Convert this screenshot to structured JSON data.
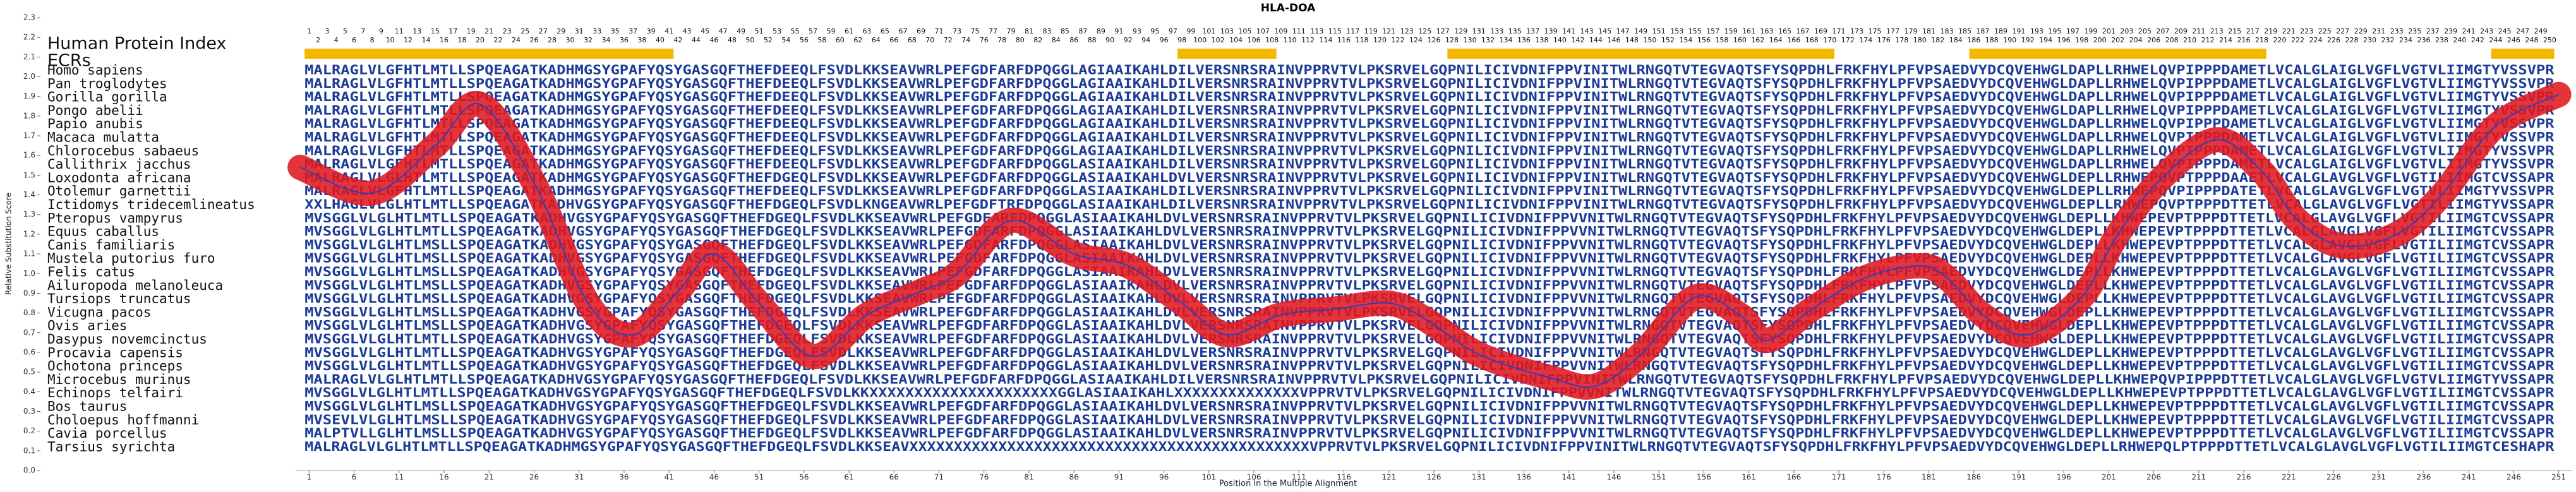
{
  "chart_data": {
    "type": "line",
    "title": "HLA-DOA",
    "xlabel": "Position in the Multiple Alignment",
    "ylabel": "Relative Substitution Score",
    "index_label": "Human Protein Index",
    "ecr_label": "ECRs",
    "x": [
      0,
      8,
      15,
      20,
      26,
      32,
      37,
      42,
      46,
      51,
      57,
      63,
      69,
      73,
      79,
      86,
      92,
      98,
      103,
      109,
      115,
      121,
      125,
      131,
      139,
      144,
      149,
      155,
      160,
      163,
      168,
      174,
      180,
      183,
      187,
      192,
      198,
      202,
      207,
      213,
      218,
      222,
      227,
      233,
      238,
      244,
      251
    ],
    "values": [
      1.54,
      1.41,
      1.65,
      1.86,
      1.46,
      0.85,
      0.69,
      0.91,
      1.1,
      0.85,
      0.58,
      0.79,
      0.91,
      1.0,
      1.27,
      1.1,
      1.04,
      0.85,
      0.69,
      0.79,
      0.82,
      0.85,
      0.77,
      0.59,
      0.47,
      0.43,
      0.59,
      0.88,
      0.79,
      0.66,
      0.82,
      0.98,
      1.04,
      0.98,
      0.79,
      0.69,
      0.88,
      1.2,
      1.49,
      1.68,
      1.52,
      1.27,
      1.14,
      1.2,
      1.4,
      1.75,
      1.91
    ],
    "color": "#e01820",
    "center_color": "#2b3fc0",
    "sequence_color": "#1c3b96",
    "ecr_color": "#f5b800",
    "xlim": [
      -0.5,
      252.5
    ],
    "ylim": [
      0,
      2.3
    ],
    "xticks": [
      1,
      6,
      11,
      16,
      21,
      26,
      31,
      36,
      41,
      46,
      51,
      56,
      61,
      66,
      71,
      76,
      81,
      86,
      91,
      96,
      101,
      106,
      111,
      116,
      121,
      126,
      131,
      136,
      141,
      146,
      151,
      156,
      161,
      166,
      171,
      176,
      181,
      186,
      191,
      196,
      201,
      206,
      211,
      216,
      221,
      226,
      231,
      236,
      241,
      246,
      251
    ],
    "yticks": [
      {
        "value": 0,
        "label": "0.0"
      },
      0.1,
      0.2,
      0.3,
      0.4,
      0.5,
      0.6,
      0.7,
      0.8,
      0.9,
      {
        "value": 1,
        "label": "1.0"
      },
      1.1,
      1.2,
      1.3,
      1.4,
      1.5,
      1.6,
      1.7,
      1.8,
      1.9,
      {
        "value": 2,
        "label": "2.0"
      },
      2.1,
      2.2,
      2.3
    ],
    "position_labels": [
      1,
      2,
      3,
      4,
      5,
      6,
      7,
      8,
      9,
      10,
      11,
      12,
      13,
      14,
      15,
      16,
      17,
      18,
      19,
      20,
      21,
      22,
      23,
      24,
      25,
      26,
      27,
      28,
      29,
      30,
      31,
      32,
      33,
      34,
      35,
      36,
      37,
      38,
      39,
      40,
      41,
      42,
      43,
      44,
      45,
      46,
      47,
      48,
      49,
      50,
      51,
      52,
      53,
      54,
      55,
      56,
      57,
      58,
      59,
      60,
      61,
      62,
      63,
      64,
      65,
      66,
      67,
      68,
      69,
      70,
      71,
      72,
      73,
      74,
      75,
      76,
      77,
      78,
      79,
      80,
      81,
      82,
      83,
      84,
      85,
      86,
      87,
      88,
      89,
      90,
      91,
      92,
      93,
      94,
      95,
      96,
      97,
      98,
      99,
      100,
      101,
      102,
      103,
      104,
      105,
      106,
      107,
      108,
      109,
      110,
      111,
      112,
      113,
      114,
      115,
      116,
      117,
      118,
      119,
      120,
      121,
      122,
      123,
      124,
      125,
      126,
      127,
      128,
      129,
      130,
      131,
      132,
      133,
      134,
      135,
      136,
      137,
      138,
      139,
      140,
      141,
      142,
      143,
      144,
      145,
      146,
      147,
      148,
      149,
      150,
      151,
      152,
      153,
      154,
      155,
      156,
      157,
      158,
      159,
      160,
      161,
      162,
      163,
      164,
      165,
      166,
      167,
      168,
      169,
      170,
      171,
      172,
      173,
      174,
      175,
      176,
      177,
      178,
      179,
      180,
      181,
      182,
      183,
      184,
      185,
      186,
      187,
      188,
      189,
      190,
      191,
      192,
      193,
      194,
      195,
      196,
      197,
      198,
      199,
      200,
      201,
      202,
      203,
      204,
      205,
      206,
      207,
      208,
      209,
      210,
      211,
      212,
      213,
      214,
      215,
      216,
      217,
      218,
      219,
      220,
      221,
      222,
      223,
      224,
      225,
      226,
      227,
      228,
      229,
      230,
      231,
      232,
      233,
      234,
      235,
      236,
      237,
      238,
      239,
      240,
      241,
      242,
      243,
      244,
      245,
      246,
      247,
      248,
      249,
      250
    ],
    "ecrs": [
      [
        1,
        41
      ],
      [
        98,
        108
      ],
      [
        128,
        170
      ],
      [
        186,
        218
      ],
      [
        244,
        250
      ]
    ],
    "species": [
      "Homo sapiens",
      "Pan troglodytes",
      "Gorilla gorilla",
      "Pongo abelii",
      "Papio anubis",
      "Macaca mulatta",
      "Chlorocebus sabaeus",
      "Callithrix jacchus",
      "Loxodonta africana",
      "Otolemur garnettii",
      "Ictidomys tridecemlineatus",
      "Pteropus vampyrus",
      "Equus caballus",
      "Canis familiaris",
      "Mustela putorius furo",
      "Felis catus",
      "Ailuropoda melanoleuca",
      "Tursiops truncatus",
      "Vicugna pacos",
      "Ovis aries",
      "Dasypus novemcinctus",
      "Procavia capensis",
      "Ochotona princeps",
      "Microcebus murinus",
      "Echinops telfairi",
      "Bos taurus",
      "Choloepus hoffmanni",
      "Cavia porcellus",
      "Tarsius syrichta"
    ],
    "sequences": [
      "MALRAGLVLGFHTLMTLLSPQEAGATKADHMGSYGPAFYQSYGASGQFTHEFDEEQLFSVDLKKSEAVWRLPEFGDFARFDPQGGLAGIAAIKAHLDILVERSNRSRAINVPPRVTVLPKSRVELGQPNILICIVDNIFPPVINITWLRNGQTVTEGVAQTSFYSQPDHLFRKFHYLPFVPSAEDVYDCQVEHWGLDAPLLRHWELQVPIPPPDAMETLVCALGLAIGLVGFLVGTVLIIMGTYVSSVPR",
      "MALRAGLVLGFHTLMTLLSPQEAGATKADHMGSYGPAFYQSYGASGQFTHEFDEEQLFSVDLKKSEAVWRLPEFGDFARFDPQGGLAGIAAIKAHLDILVERSNRSRAINVPPRVTVLPKSRVELGQPNILICIVDNIFPPVINITWLRNGQTVTEGVAQTSFYSQPDHLFRKFHYLPFVPSAEDVYDCQVEHWGLDAPLLRHWELQVPIPPPDAMETLVCALGLAIGLVGFLVGTVLIIMGTYVSSVPR",
      "MALRAGLVLGFHTLMTLLSPQEAGATKADHMGSYGPAFYQSYGASGQFTHEFDEEQLFSVDLKKSEAVWRLPEFGDFARFDPQGGLAGIAAIKAHLDILVERSNRSRAINVPPRVTVLPKSRVELGQPNILICIVDNIFPPVINITWLRNGQTVTEGVAQTSFYSQPDHLFRKFHYLPFVPSAEDVYDCQVEHWGLDAPLLRHWELQVPIPPPDAMETLVCALGLAIGLVGFLVGTVLIIMGTYVSSVPR",
      "MALRAGLVLGFHTLMTLLSPQEAGATKADHMGSYGPAFYQSYGASGQFTHEFDEEQLFSVDLKKSEAVWRLPEFGDFARFDPQGGLAGIAAIKAHLDILVERSNRSRAINVPPRVTVLPKSRVELGQPNILICIVDNIFPPVINITWLRNGQTVTEGVAQTSFYSQPDHLFRKFHYLPFVPSAEDVYDCQVEHWGLDAPLLRHWELQVPIPPPDAMETLVCALGLAIGLVGFLVGTVLIIMGTYVSSVPR",
      "MALRAGLVLGFHTLMTLLSPQEAGATKADHMGSYGPAFYQSYGASGQFTHEFDEEQLFSVDLKKSEAVWRLPEFGDFARFDPQGGLAGIAAIKAHLDILVERSNRSRAINVPPRVTVLPKSRVELGQPNILICIVDNIFPPVINITWLRNGQTVTEGVAQTSFYSQPDHLFRKFHYLPFVPSAEDVYDCQVEHWGLDAPLLRHWELQVPIPPPDAMETLVCALGLAIGLVGFLVGTVLIIMGTYVSSVPR",
      "MALRAGLVLGFHTLMTLLSPQEAGATKADHMGSYGPAFYQSYGASGQFTHEFDEEQLFSVDLKKSEAVWRLPEFGDFARFDPQGGLAGIAAIKAHLDILVERSNRSRAINVPPRVTVLPKSRVELGQPNILICIVDNIFPPVINITWLRNGQTVTEGVAQTSFYSQPDHLFRKFHYLPFVPSAEDVYDCQVEHWGLDAPLLRHWELQVPIPPPDAMETLVCALGLAIGLVGFLVGTVLIIMGTYVSSVPR",
      "MALRAGLVLGFHTLMTLLSPQEAGATKADHMGSYGPAFYQSYGASGQFTHEFDEEQLFSVDLKKSEAVWRLPEFGDFARFDPQGGLAGIAAIKAHLDILVERSNRSRAINVPPRVTVLPKSRVELGQPNILICIVDNIFPPVINITWLRNGQTVTEGVAQTSFYSQPDHLFRKFHYLPFVPSAEDVYDCQVEHWGLDAPLLRHWELQVPIPPPDAMETLVCALGLAIGLVGFLVGTVLIIMGTYVSSVPR",
      "MALRAGLVLGFHTLMTLLSPQEAGATKADHMGSYGPAFYQSYGASGQFTHEFDEEQLFSVDLKKSEAVWRLPEFGDFARFDPQGGLASIAAIKAHLDILVERSNRSRAINVPPRVTVLPKSRVELGQPNILICIVDNIFPPVINITWLRNGQTVTEGVAQTSFYSQPDHLFRKFHYLPFVPSAEDVYDCQVEHWGLDAPLLRHWELQVPIPPPDAMETLVCALGLAIGLVGFLVGTVLIIMGTYVSSVPR",
      "MALRAGLVLGLHTLMTLLSPQEAGATKADHMGSYGPAFYQSYGASGQFTHEFDGEQLFSVDLKKSEAVWRLPEFGDFARFDPQGGLASIAAIKAHLDVLVERSNRSRAINVPPRVTVLPKSRVELGQPNILICIVDNIFPPVINITWLRNGQTVTEGVAQTSFYSQPDHLFRKFHYLPFVPSAEDVYDCQVEHWGLDEPLLRHWEPQVPTPPPDAAETLVCALGLAVGLVGFLVGTILIIMGTCVSSAPR",
      "MALRAGLVLGFHTLMTLLSPQEAGATKADHMGSYGPAFYQSYGASGQFTHEFDEEQLFSVDLKKSEAVWRLPEFGDFARFDPQGGLASIAAIKAHLDILVERSNRSRAINVPPRVTVLPKSRVELGQPNILICIVDNIFPPVINITWLRNGQTVTEGVAQTSFYSQPDHLFRKFHYLPFVPSAEDVYDCQVEHWGLDEPLLRHWEPQVPIPPPDATETLVCALGLAVGLVGFLVGTVLIIMGTYVSSVPR",
      "XXLHAGLVLGLHTLMTLLSPQEAGATKADHVGSYGPAFYQSYGASGQFTHEFDGEQLFSVDLKNGEAVWRLPEFGDFTRFDPQGGLASIAAIKAHLDILVERSNRSRAINVPPRVTVLPKSRVELGQPNILICIVDNIFPPVINITWLRNGQTVTEGVAQTSFYSQPDHLFRKFHYLPFVPSAEDVYDCQVEHWGLDEPLLRHWEPQVPTPPPDTTETLVCALGLAVGLVGFLVGTILIIMGTYVSSAPR",
      "MVSGGLVLGLHTLMTLLSPQEAGATKADHVGSYGPAFYQSYGASGQFTHEFDGEQLFSVDLKKSEAVWRLPEFGDFARFDPQGGLASIAAIKAHLDVLVERSNRSRAINVPPRVTVLPKSRVELGQPNILICIVDNIFPPVVNITWLRNGQTVTEGVAQTSFYSQPDHLFRKFHYLPFVPSAEDVYDCQVEHWGLDEPLLKHWEPEVPTPPPDTTETLVCALGLAVGLVGFLVGTILIIMGTCVSSAPR",
      "MVSGGLVLGLHTLMTLLSPQEAGATKADHVGSYGPAFYQSYGASGQFTHEFDGEQLFSVDLKKSEAVWRLPEFGDFARFDPQGGLASIAAIKAHLDVLVERSNRSRAINVPPRVTVLPKSRVELGQPNILICIVDNIFPPVVNITWLRNGQTVTEGVAQTSFYSQPDHLFRKFHYLPFVPSAEDVYDCQVEHWGLDEPLLKHWEPEVPTPPPDTTETLVCALGLAVGLVGFLVGTILIIMGTCVSSAPR",
      "MVSGGLVLGLHTLMSLLSPQEAGATKADHVGSYGPAFYQSYGASGQFTHEFDGEQLFSVDLKKSEAVWRLPEFGDFARFDPQGGLASIAAIKAHLDVLVERSNRSRAINVPPRVTVLPKSRVELGQPNILICIVDNIFPPVVNITWLRNGQTVTEGVAQTSFYSQPDHLFRKFHYLPFVPSAEDVYDCQVEHWGLDEPLLKHWEPEVPTPPPDTTETLVCALGLAVGLVGFLVGTILIIMGTCVSSAPR",
      "MVSGGLVLGLHTLMSLLSPQEAGATKADHVGSYGPAFYQSYGASGQFTHEFDGEQLFSVDLKKSEAVWRLPEFGDFARFDPQGGLASIAAIKAHLDVLVERSNRSRAINVPPRVTVLPKSRVELGQPNILICIVDNIFPPVVNITWLRNGQTVTEGVAQTSFYSQPDHLFRKFHYLPFVPSAEDVYDCQVEHWGLDEPLLKHWEPEVPTPPPDTTETLVCALGLAVGLVGFLVGTILIIMGTCVSSAPR",
      "MVSGGLVLGLHTLMSLLSPQEAGATKADHVGSYGPAFYQSYGASGQFTHEFDGEQLFSVDLKKSEAVWRLPEFGDFARFDPQGGLASIAAIKAHLDVLVERSNRSRAINVPPRVTVLPKSRVELGQPNILICIVDNIFPPVVNITWLRNGQTVTEGVAQTSFYSQPDHLFRKFHYLPFVPSAEDVYDCQVEHWGLDEPLLKHWEPEVPTPPPDTTETLVCALGLAVGLVGFLVGTILIIMGTCVSSAPR",
      "MVSGGLVLGLHTLMSLLSPQEAGATKADHVGSYGPAFYQSYGASGQFTHEFDGEQLFSVDLKKSEAVWRLPEFGDFARFDPQGGLASIAAIKAHLDVLVERSNRSRAINVPPRVTVLPKSRVELGQPNILICIVDNIFPPVVNITWLRNGQTVTEGVAQTSFYSQPDHLFRKFHYLPFVPSAEDVYDCQVEHWGLDEPLLKHWEPEVPTPPPDTTETLVCALGLAVGLVGFLVGTILIIMGTCVSSAPR",
      "MVSGGLVLGLHTLMSLLSPQEAGATKADHVGSYGPAFYQSYGASGQFTHEFDGEQLFSVDLKKSEAVWRLPEFGDFARFDPQGGLASIAAIKAHLDVLVERSNRSRAINVPPRVTVLPKSRVELGQPNILICIVDNIFPPVVNITWLRNGQTVTEGVAQTSFYSQPDHLFRKFHYLPFVPSAEDVYDCQVEHWGLDEPLLKHWEPEVPTPPPDTTETLVCALGLAVGLVGFLVGTILIIMGTCVSSAPR",
      "MVSGGLVLGLHTLMSLLSPQEAGATKADHVGSYGPAFYQSYGASGQFTHEFDGEQLFSVDLKKSEAVWRLPEFGDFARFDPQGGLASIAAIKAHLDVLVERSNRSRAINVPPRVTVLPKSRVELGQPNILICIVDNIFPPVVNITWLRNGQTVTEGVAQTSFYSQPDHLFRKFHYLPFVPSAEDVYDCQVEHWGLDEPLLKHWEPEVPTPPPDTTETLVCALGLAVGLVGFLVGTILIIMGTCVSSAPR",
      "MVSGGLVLGLHTLMSLLSPQEAGATKADHVGSYGPAFYQSYGASGQFTHEFDGEQLFSVDLKKSEAVWRLPEFGDFARFDPQGGLASIAAIKAHLDVLVERSNRSRAINVPPRVTVLPKSRVELGQPNILICIVDNIFPPVVNITWLRNGQTVTEGVAQTSFYSQPDHLFRKFHYLPFVPSAEDVYDCQVEHWGLDEPLLKHWEPEVPTPPPDTTETLVCALGLAVGLVGFLVGTILIIMGTCVSSAPR",
      "MVSGGLVLGLHTLMTLLSPQEAGATKADHVGSYGPAFYQSYGASGQFTHEFDGEQLFSVDLKKSEAVWRLPEFGDFARFDPQGGLASIAAIKAHLDVLVERSNRSRAINVPPRVTVLPKSRVELGQPNILICIVDNIFPPVVNITWLRNGQTVTEGVAQTSFYSQPDHLFRKFHYLPFVPSAEDVYDCQVEHWGLDEPLLKHWEPEVPTPPPDTTETLVCALGLAVGLVGFLVGTILIIMGTCVSSAPR",
      "MVSGGLVLGLHTLMTLLSPQEAGATKADHVGSYGPAFYQSYGASGQFTHEFDGEQLFSVDLKKSEAVWRLPEFGDFARFDPQGGLASIAAIKAHLDVLVERSNRSRAINVPPRVTVLPKSRVELGQPNILICIVDNIFPPVVNITWLRNGQTVTEGVAQTSFYSQPDHLFRKFHYLPFVPSAEDVYDCQVEHWGLDEPLLKHWEPEVPTPPPDTTETLVCALGLAVGLVGFLVGTILIIMGTCVSSAPR",
      "MVSGGLVLGLHTLMTLLSPQEAGATKADHVGSYGPAFYQSYGASGQFTHEFDGEQLFSVDLKKSEAVWRLPEFGDFARFDPQGGLASIAAIKAHLDVLVERSNRSRAINVPPRVTVLPKSRVELGQPNILICIVDNIFPPVVNITWLRNGQTVTEGVAQTSFYSQPDHLFRKFHYLPFVPSAEDVYDCQVEHWGLDEPLLKHWEPEVPTPPPDTTETLVCALGLAVGLVGFLVGTILIIMGTCVSSAPR",
      "MALRAGLVLGLHTLMTLLSPQEAGATKADHVGSYGPAFYQSYGASGQFTHEFDGEQLFSVDLKKSEAVWRLPEFGDFARFDPQGGLASIAAIKAHLDILVERSNRSRAINVPPRVTVLPKSRVELGQPNILICIVDNIFPPVINITWLRNGQTVTEGVAQTSFYSQPDHLFRKFHYLPFVPSAEDVYDCQVEHWGLDEPLLKHWEPQVPIPPPDTTETLVCALGLAVGLVGFLVGTVLIIMGTYVSSAPR",
      "MVSGGLVLGLHTLMTLLSPQEAGATKADHVGSYGPAFYQSYGASGQFTHEFDGEQLFSVDLKKXXXXXXXXXXXXXXXXXXXXXGGLASIAAIKAHLXXXXXXXXXXXXXXVPPRVTVLPKSRVELGQPNILICIVDNIFPPVVNITWLRNGQTVTEGVAQTSFYSQPDHLFRKFHYLPFVPSAEDVYDCQVEHWGLDEPLLKHWEPEVPTPPPDTTETLVCALGLAVGLVGFLVGTILIIMGTCVSSAPR",
      "MVSGGLVLGLHTLMSLLSPQEAGATKADHVGSYGPAFYQSYGASGQFTHEFDGEQLFSVDLKKSEAVWRLPEFGDFARFDPQGGLASIAAIKAHLDVLVERSNRSRAINVPPRVTVLPKSRVELGQPNILICIVDNIFPPVVNITWLRNGQTVTEGVAQTSFYSQPDHLFRKFHYLPFVPSAEDVYDCQVEHWGLDEPLLKHWEPEVPTPPPDTTETLVCALGLAVGLVGFLVGTILIIMGTCVSSAPR",
      "MVSEVLVLGLHTLMSLLSPQEAGATKADHVGSYGPAFYQSYGASGQFTHEFDGEQLFSVDLKKSEAVWRLPEFGDFARFDPQGGLASIAAIKAHLDVLVERSNRSRAINVPPRVTVLPKSRVELGQPNILICIVDNIFPPVVNITWLRNGQTVTEGVAQTSFYSQPDHLFRKFHYLPFVPSAEDVYDCQVEHWGLDEPLLKHWEPEVPTPPPDTTETLVCALGLAVGLVGFLVGTILIIMGTCVSSAPR",
      "MALPTVLLGLHTLMSLLSPQEAGATKADHVGSYGPAFYQSYGASGQFTHEFDGEQLFSVDLKKSEAVWRLPEFGDFARFDPQGGLASIAAIKAHLDVLVERSNRSRAINVPPRVTVLPKSRVELGQPNILICIVDNIFPPVVNITWLRNGQTVTEGVAQTSFYSQPDHLFRKFHYLPFVPSAEDVYDCQVEHWGLDEPLLKHWEPEVPTPPPDTTETLVCALGLAVGLVGFLVGTILIIMGTCVSSAPR",
      "MALRAGLVLGLHTLMTLLSPQEAGATKADHMGSYGPAFYQSYGASGQFTHEFDGEQLFSVDLKKSEAVXXXXXXXXXXXXXXXXXXXXXXXXXXXXXXXXXXXXXXXXXXXXXVPPRVTVLPKSRVELGQPNILICIVDNIFPPVINITWLRNGQTVTEGVAQTSFYSQPDHLFRKFHYLPFVPSAEDVYDCQVEHWGLDEPLLRHWEPQLPTPPPDTTETLVCALGLAVGLVGFLVGTILIIMGTCESHAPR"
    ]
  }
}
